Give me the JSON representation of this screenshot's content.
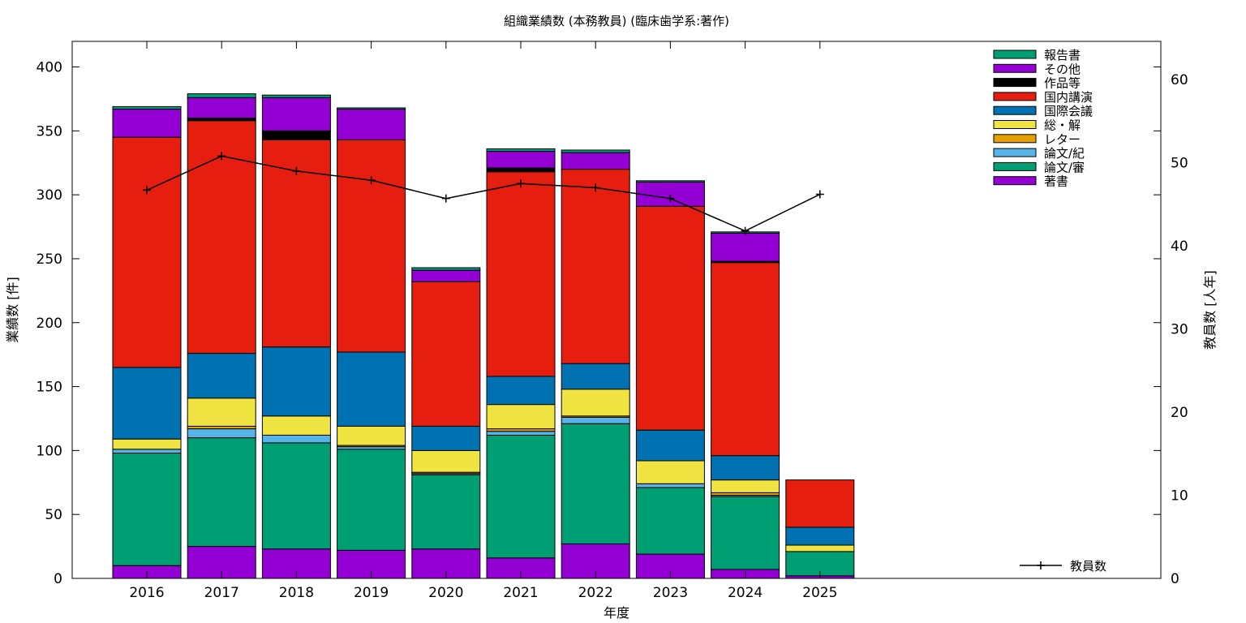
{
  "chart_data": {
    "type": "bar",
    "title": "組織業績数 (本務教員) (臨床歯学系:著作)",
    "xlabel": "年度",
    "ylabel": "業績数 [件]",
    "y2label": "教員数 [人年]",
    "categories": [
      "2016",
      "2017",
      "2018",
      "2019",
      "2020",
      "2021",
      "2022",
      "2023",
      "2024",
      "2025"
    ],
    "ylim": [
      0,
      420
    ],
    "yticks": [
      0,
      50,
      100,
      150,
      200,
      250,
      300,
      350,
      400
    ],
    "y2lim": [
      0,
      64.6
    ],
    "y2ticks": [
      0,
      10,
      20,
      30,
      40,
      50,
      60
    ],
    "stacked": true,
    "grid": false,
    "legend_position": "top-right",
    "series": [
      {
        "name": "著書",
        "color": "#9400d3",
        "values": [
          10,
          25,
          23,
          22,
          23,
          16,
          27,
          19,
          7,
          2
        ]
      },
      {
        "name": "論文/審",
        "color": "#009e73",
        "values": [
          88,
          85,
          83,
          79,
          58,
          96,
          94,
          52,
          57,
          19
        ]
      },
      {
        "name": "論文/紀",
        "color": "#56b4e9",
        "values": [
          3,
          7,
          6,
          2,
          1,
          3,
          5,
          3,
          1,
          0
        ]
      },
      {
        "name": "レター",
        "color": "#e69f00",
        "values": [
          0,
          2,
          0,
          1,
          1,
          2,
          1,
          0,
          2,
          0
        ]
      },
      {
        "name": "総・解",
        "color": "#f0e442",
        "values": [
          8,
          22,
          15,
          15,
          17,
          19,
          21,
          18,
          10,
          5
        ]
      },
      {
        "name": "国際会議",
        "color": "#0072b2",
        "values": [
          56,
          35,
          54,
          58,
          19,
          22,
          20,
          24,
          19,
          14
        ]
      },
      {
        "name": "国内講演",
        "color": "#e51e10",
        "values": [
          180,
          182,
          162,
          166,
          113,
          160,
          152,
          175,
          151,
          37
        ]
      },
      {
        "name": "作品等",
        "color": "#000000",
        "values": [
          0,
          2,
          7,
          0,
          0,
          3,
          0,
          0,
          1,
          0
        ]
      },
      {
        "name": "その他",
        "color": "#9400d3",
        "values": [
          22,
          16,
          26,
          24,
          9,
          13,
          13,
          19,
          22,
          0
        ]
      },
      {
        "name": "報告書",
        "color": "#009e73",
        "values": [
          2,
          3,
          2,
          1,
          2,
          2,
          2,
          1,
          1,
          0
        ]
      }
    ],
    "line_series": {
      "name": "教員数",
      "axis": "y2",
      "color": "#000000",
      "values": [
        46.7,
        50.8,
        49.0,
        47.9,
        45.7,
        47.5,
        47.0,
        45.7,
        41.8,
        46.2
      ]
    }
  }
}
